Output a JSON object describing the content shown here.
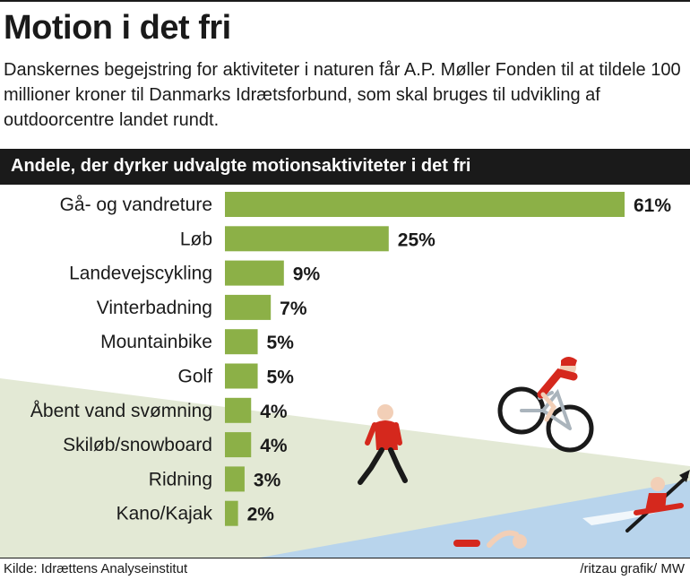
{
  "header": {
    "title": "Motion i det fri",
    "subtitle": "Danskernes begejstring for aktiviteter i naturen får A.P. Møller Fonden til at tildele 100 millioner kroner til Danmarks Idrætsforbund, som skal bruges til udvikling af outdoorcentre landet rundt."
  },
  "footer": {
    "source": "Kilde: Idrættens Analyseinstitut",
    "credit": "/ritzau grafik/ MW"
  },
  "colors": {
    "bar": "#8cb047",
    "band": "#1a1a1a",
    "hill": "#e3e9d5",
    "water": "#b8d4ec",
    "figure_red": "#d5281d",
    "figure_skin": "#f2cfb7"
  },
  "icons": [
    "walker-icon",
    "cyclist-icon",
    "swimmer-icon",
    "kayaker-icon"
  ],
  "chart_data": {
    "type": "bar",
    "orientation": "horizontal",
    "title": "Andele, der dyrker udvalgte motionsaktiviteter i det fri",
    "xlabel": "",
    "ylabel": "",
    "unit": "%",
    "xlim": [
      0,
      61
    ],
    "grid": false,
    "categories": [
      "Gå- og vandreture",
      "Løb",
      "Landevejscykling",
      "Vinterbadning",
      "Mountainbike",
      "Golf",
      "Åbent vand svømning",
      "Skiløb/snowboard",
      "Ridning",
      "Kano/Kajak"
    ],
    "values": [
      61,
      25,
      9,
      7,
      5,
      5,
      4,
      4,
      3,
      2
    ],
    "value_labels": [
      "61%",
      "25%",
      "9%",
      "7%",
      "5%",
      "5%",
      "4%",
      "4%",
      "3%",
      "2%"
    ]
  }
}
